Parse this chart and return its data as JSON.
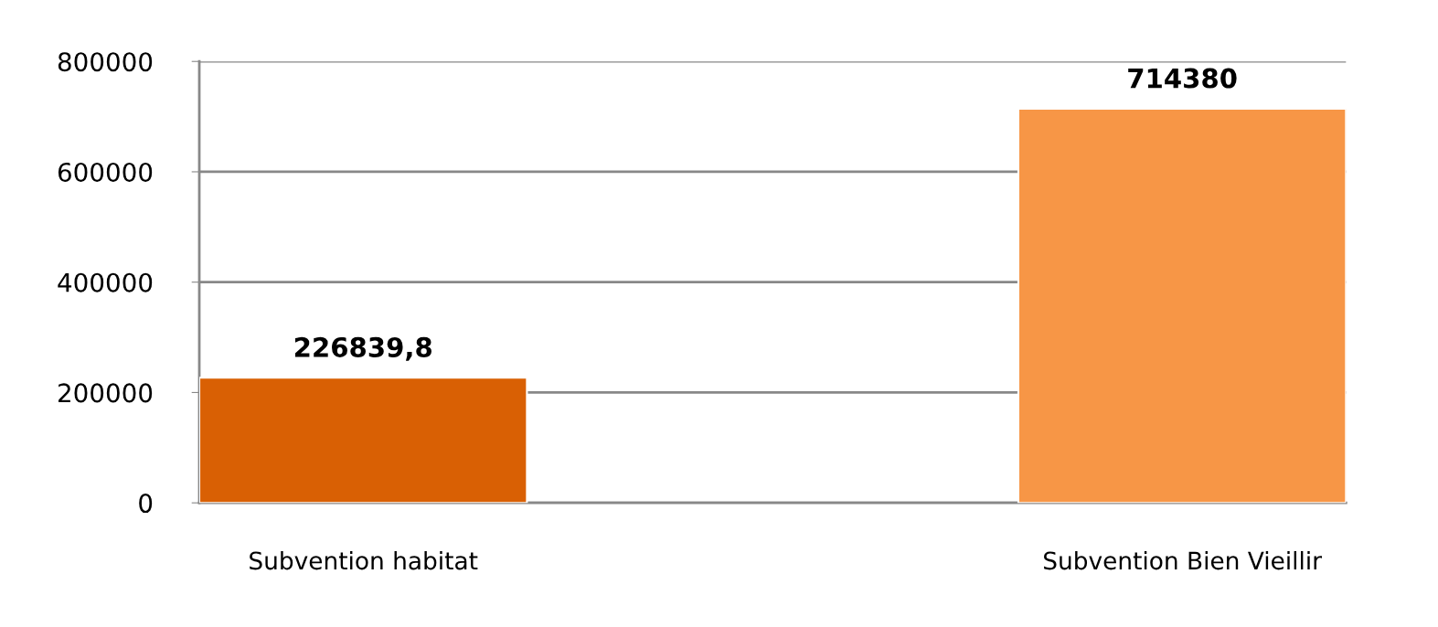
{
  "chart_data": {
    "type": "bar",
    "categories": [
      "Subvention habitat",
      "Subvention Bien Vieillir"
    ],
    "values": [
      226839.8,
      714380
    ],
    "colors": [
      "#d96004",
      "#f79646"
    ],
    "value_labels": [
      "226839,8",
      "714380"
    ],
    "ylim": [
      0,
      800000
    ],
    "yticks": [
      0,
      200000,
      400000,
      600000,
      800000
    ],
    "grid": "y",
    "legend": false
  }
}
